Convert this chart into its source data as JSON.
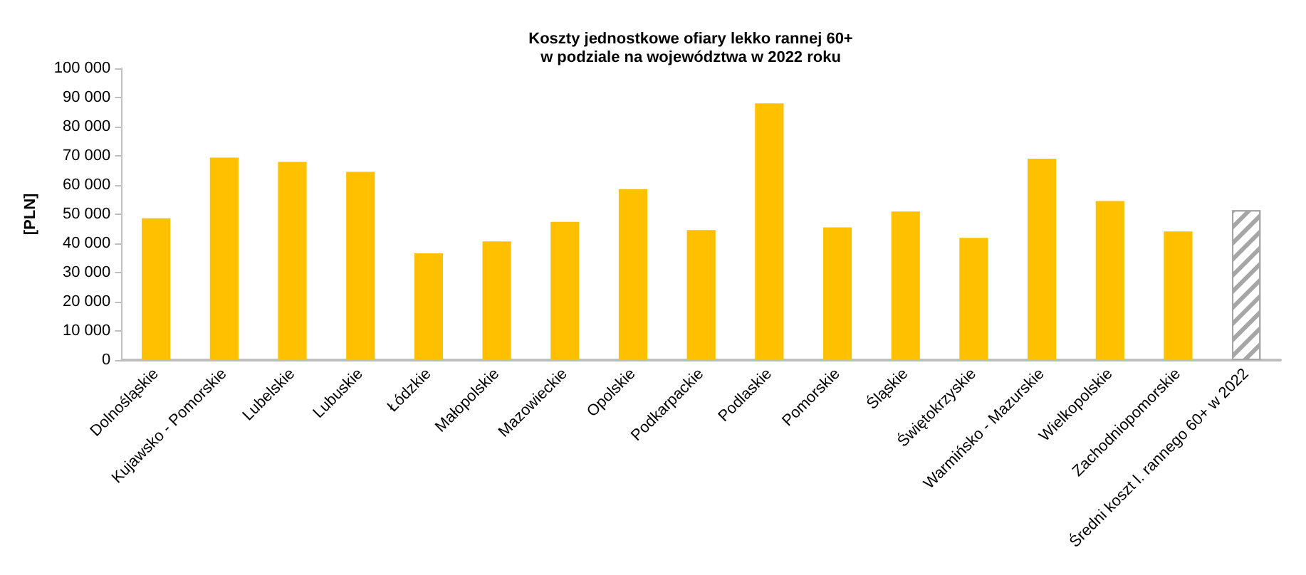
{
  "chart_data": {
    "type": "bar",
    "title": "Koszty jednostkowe ofiary lekko rannej 60+\nw podziale na województwa w 2022 roku",
    "ylabel": "[PLN]",
    "categories": [
      "Dolnośląskie",
      "Kujawsko - Pomorskie",
      "Lubelskie",
      "Lubuskie",
      "Łódzkie",
      "Małopolskie",
      "Mazowieckie",
      "Opolskie",
      "Podkarpackie",
      "Podlaskie",
      "Pomorskie",
      "Śląskie",
      "Świętokrzyskie",
      "Warmińsko - Mazurskie",
      "Wielkopolskie",
      "Zachodniopomorskie",
      "Średni koszt l. rannego 60+ w 2022"
    ],
    "values": [
      48600,
      69400,
      67900,
      64500,
      36600,
      40700,
      47400,
      58600,
      44600,
      88000,
      45500,
      50900,
      41900,
      69000,
      54500,
      44100,
      51400
    ],
    "colors": [
      "#ffc000",
      "#ffc000",
      "#ffc000",
      "#ffc000",
      "#ffc000",
      "#ffc000",
      "#ffc000",
      "#ffc000",
      "#ffc000",
      "#ffc000",
      "#ffc000",
      "#ffc000",
      "#ffc000",
      "#ffc000",
      "#ffc000",
      "#ffc000",
      "#a6a6a6"
    ],
    "ylim": [
      0,
      100000
    ],
    "yticks": [
      {
        "value": 0,
        "label": "0"
      },
      {
        "value": 10000,
        "label": "10 000"
      },
      {
        "value": 20000,
        "label": "20 000"
      },
      {
        "value": 30000,
        "label": "30 000"
      },
      {
        "value": 40000,
        "label": "40 000"
      },
      {
        "value": 50000,
        "label": "50 000"
      },
      {
        "value": 60000,
        "label": "60 000"
      },
      {
        "value": 70000,
        "label": "70 000"
      },
      {
        "value": 80000,
        "label": "80 000"
      },
      {
        "value": 90000,
        "label": "90 000"
      },
      {
        "value": 100000,
        "label": "100 000"
      }
    ],
    "grid": false
  }
}
